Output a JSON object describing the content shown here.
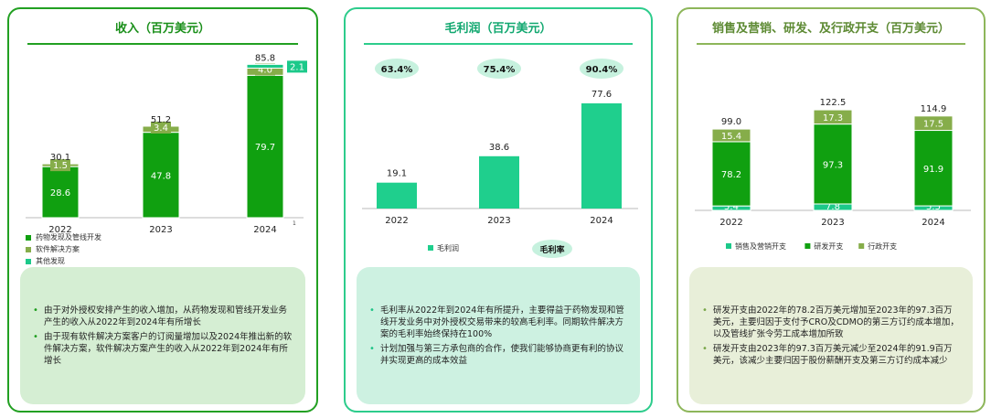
{
  "colors": {
    "green": "#10a010",
    "olive": "#86ad4a",
    "teal": "#1cc98a",
    "gross_teal": "#1fcf8d",
    "pill_bg": "#c6f1de"
  },
  "panels": [
    {
      "title": "收入（百万美元）",
      "bullets": [
        "由于对外授权安排产生的收入增加，从药物发现和管线开发业务产生的收入从2022年到2024年有所增长",
        "由于现有软件解决方案客户的订阅量增加以及2024年推出新的软件解决方案，软件解决方案产生的收入从2022年到2024年有所增长"
      ]
    },
    {
      "title": "毛利润（百万美元）",
      "bullets": [
        "毛利率从2022年到2024年有所提升，主要得益于药物发现和管线开发业务中对外授权交易带来的较高毛利率。同期软件解决方案的毛利率始终保持在100%",
        "计划加强与第三方承包商的合作，使我们能够协商更有利的协议并实现更高的成本效益"
      ]
    },
    {
      "title": "销售及营销、研发、及行政开支（百万美元）",
      "bullets": [
        "研发开支由2022年的78.2百万美元增加至2023年的97.3百万美元，主要归因于支付予CRO及CDMO的第三方订约成本增加，以及管线扩张令劳工成本增加所致",
        "研发开支由2023年的97.3百万美元减少至2024年的91.9百万美元，该减少主要归因于股份薪酬开支及第三方订约成本减少"
      ]
    }
  ],
  "chart_data": [
    {
      "type": "bar",
      "stacked": true,
      "title": "收入（百万美元）",
      "categories": [
        "2022",
        "2023",
        "2024"
      ],
      "category_footnote": "1",
      "series": [
        {
          "name": "药物发现及管线开发",
          "values": [
            28.6,
            47.8,
            79.7
          ],
          "color": "#10a010"
        },
        {
          "name": "软件解决方案",
          "values": [
            1.5,
            3.4,
            4.0
          ],
          "color": "#86ad4a"
        },
        {
          "name": "其他发现",
          "values": [
            0,
            0,
            2.1
          ],
          "color": "#1cc98a"
        }
      ],
      "totals": [
        30.1,
        51.2,
        85.8
      ],
      "ylim": [
        0,
        90
      ],
      "legend": "bottom-left"
    },
    {
      "type": "bar",
      "title": "毛利润（百万美元）",
      "categories": [
        "2022",
        "2023",
        "2024"
      ],
      "series": [
        {
          "name": "毛利润",
          "values": [
            19.1,
            38.6,
            77.6
          ],
          "color": "#1fcf8d"
        }
      ],
      "secondary_labels": {
        "name": "毛利率",
        "values": [
          "63.4%",
          "75.4%",
          "90.4%"
        ]
      },
      "ylim": [
        0,
        90
      ],
      "legend": "bottom"
    },
    {
      "type": "bar",
      "stacked": true,
      "title": "销售及营销、研发、及行政开支（百万美元）",
      "categories": [
        "2022",
        "2023",
        "2024"
      ],
      "series": [
        {
          "name": "销售及营销开支",
          "values": [
            5.4,
            7.8,
            5.5
          ],
          "color": "#1cc98a"
        },
        {
          "name": "研发开支",
          "values": [
            78.2,
            97.3,
            91.9
          ],
          "color": "#10a010"
        },
        {
          "name": "行政开支",
          "values": [
            15.4,
            17.3,
            17.5
          ],
          "color": "#86ad4a"
        }
      ],
      "totals": [
        99.0,
        122.5,
        114.9
      ],
      "ylim": [
        0,
        130
      ],
      "legend": "bottom"
    }
  ]
}
